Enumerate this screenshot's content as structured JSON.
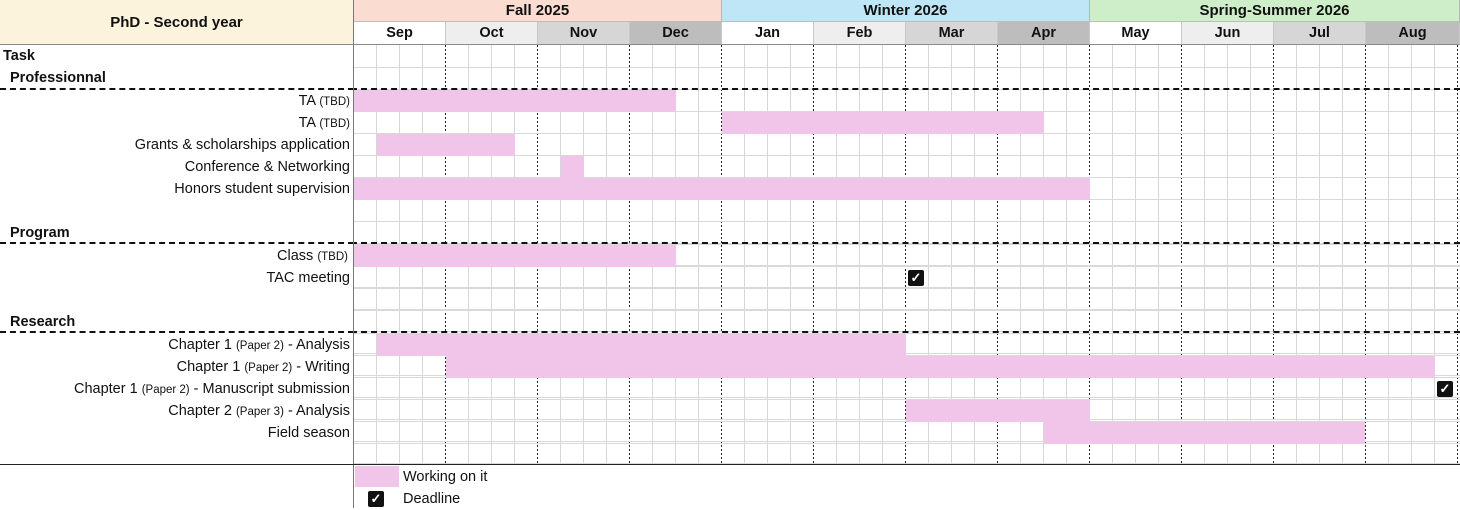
{
  "header": {
    "title": "PhD - Second year",
    "seasons": [
      {
        "label": "Fall 2025",
        "color": "#fbdcd0"
      },
      {
        "label": "Winter 2026",
        "color": "#bfe6f7"
      },
      {
        "label": "Spring-Summer 2026",
        "color": "#cdeec8"
      }
    ],
    "months": [
      "Sep",
      "Oct",
      "Nov",
      "Dec",
      "Jan",
      "Feb",
      "Mar",
      "Apr",
      "May",
      "Jun",
      "Jul",
      "Aug"
    ],
    "month_colors": [
      "#ffffff",
      "#eeeeee",
      "#d6d6d6",
      "#bdbdbd",
      "#ffffff",
      "#eeeeee",
      "#d6d6d6",
      "#bdbdbd",
      "#ffffff",
      "#eeeeee",
      "#d6d6d6",
      "#bdbdbd"
    ]
  },
  "task_header": "Task",
  "sections": {
    "professional": "Professionnal",
    "program": "Program",
    "research": "Research"
  },
  "rows": {
    "ta1": {
      "main": "TA",
      "small": "(TBD)",
      "rest": ""
    },
    "ta2": {
      "main": "TA",
      "small": "(TBD)",
      "rest": ""
    },
    "grants": {
      "main": "Grants & scholarships application",
      "small": "",
      "rest": ""
    },
    "conference": {
      "main": "Conference & Networking",
      "small": "",
      "rest": ""
    },
    "honors": {
      "main": "Honors student supervision",
      "small": "",
      "rest": ""
    },
    "class": {
      "main": "Class",
      "small": "(TBD)",
      "rest": ""
    },
    "tac": {
      "main": "TAC meeting",
      "small": "",
      "rest": ""
    },
    "ch1_analysis": {
      "main": "Chapter 1",
      "small": "(Paper 2)",
      "rest": "- Analysis"
    },
    "ch1_writing": {
      "main": "Chapter 1",
      "small": "(Paper 2)",
      "rest": "- Writing"
    },
    "ch1_submission": {
      "main": "Chapter 1",
      "small": "(Paper 2)",
      "rest": "- Manuscript submission"
    },
    "ch2_analysis": {
      "main": "Chapter 2",
      "small": "(Paper 3)",
      "rest": "- Analysis"
    },
    "field": {
      "main": "Field season",
      "small": "",
      "rest": ""
    }
  },
  "legend": {
    "working": "Working on it",
    "deadline": "Deadline",
    "check_icon": "checkbox-checked-icon",
    "working_color": "#f1c5ea"
  }
}
